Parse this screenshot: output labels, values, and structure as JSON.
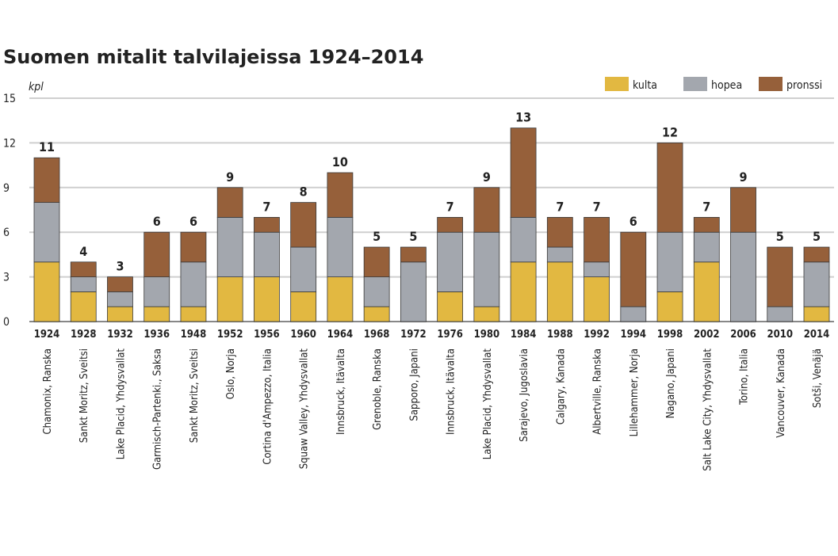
{
  "chart_data": {
    "type": "bar",
    "stacked": true,
    "title": "Suomen mitalit talvilajeissa 1924–2014",
    "ylabel": "kpl",
    "xlabel": "",
    "ylim": [
      0,
      15
    ],
    "yticks": [
      0,
      3,
      6,
      9,
      12,
      15
    ],
    "grid": true,
    "legend_position": "top-right",
    "categories": [
      "1924",
      "1928",
      "1932",
      "1936",
      "1948",
      "1952",
      "1956",
      "1960",
      "1964",
      "1968",
      "1972",
      "1976",
      "1980",
      "1984",
      "1988",
      "1992",
      "1994",
      "1998",
      "2002",
      "2006",
      "2010",
      "2014"
    ],
    "locations": [
      "Chamonix, Ranska",
      "Sankt Moritz, Sveitsi",
      "Lake Placid, Yhdysvallat",
      "Garmisch-Partenki., Saksa",
      "Sankt Moritz, Sveitsi",
      "Oslo, Norja",
      "Cortina d'Ampezzo, Italia",
      "Squaw Valley, Yhdysvallat",
      "Innsbruck, Itävalta",
      "Grenoble, Ranska",
      "Sapporo, Japani",
      "Innsbruck, Itävalta",
      "Lake Placid, Yhdysvallat",
      "Sarajevo, Jugoslavia",
      "Calgary, Kanada",
      "Albertville, Ranska",
      "Lillehammer, Norja",
      "Nagano, Japani",
      "Salt Lake City, Yhdysvallat",
      "Torino, Italia",
      "Vancouver, Kanada",
      "Sotši, Venäjä"
    ],
    "series": [
      {
        "name": "kulta",
        "color": "#e2b841",
        "values": [
          4,
          2,
          1,
          1,
          1,
          3,
          3,
          2,
          3,
          1,
          0,
          2,
          1,
          4,
          4,
          3,
          0,
          2,
          4,
          0,
          0,
          1
        ]
      },
      {
        "name": "hopea",
        "color": "#a3a7ae",
        "values": [
          4,
          1,
          1,
          2,
          3,
          4,
          3,
          3,
          4,
          2,
          4,
          4,
          5,
          3,
          1,
          1,
          1,
          4,
          2,
          6,
          1,
          3
        ]
      },
      {
        "name": "pronssi",
        "color": "#96603a",
        "values": [
          3,
          1,
          1,
          3,
          2,
          2,
          1,
          3,
          3,
          2,
          1,
          1,
          3,
          6,
          2,
          3,
          5,
          6,
          1,
          3,
          4,
          1
        ]
      }
    ],
    "totals": [
      11,
      4,
      3,
      6,
      6,
      9,
      7,
      8,
      10,
      5,
      5,
      7,
      9,
      13,
      7,
      7,
      6,
      12,
      7,
      9,
      5,
      5
    ]
  }
}
